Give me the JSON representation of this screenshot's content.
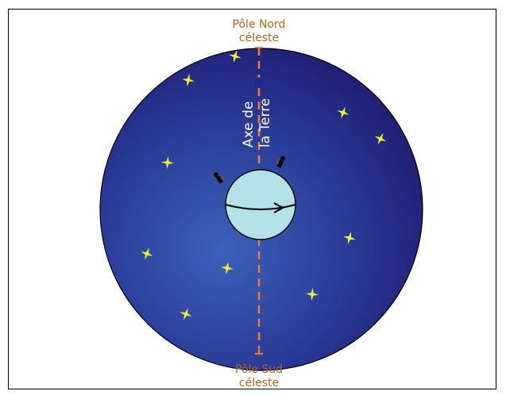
{
  "labels": {
    "north_pole_line1": "Pôle Nord",
    "north_pole_line2": "céleste",
    "south_pole_line1": "Pôle Sud",
    "south_pole_line2": "céleste",
    "axis_line1": "Axe de",
    "axis_line2": "la Terre"
  },
  "colors": {
    "pole_label": "#b5651d",
    "axis": "#f07a3a",
    "sphere_center": "#3a62b8",
    "sphere_edge": "#1e1a6e",
    "earth": "#b2e2e6",
    "star": "#f4ec3c",
    "axis_text": "#ffffff"
  },
  "stars": [
    {
      "name": "star-1"
    },
    {
      "name": "star-2"
    },
    {
      "name": "star-3"
    },
    {
      "name": "star-4"
    },
    {
      "name": "star-5"
    },
    {
      "name": "star-6"
    },
    {
      "name": "star-7"
    },
    {
      "name": "star-8"
    },
    {
      "name": "star-9"
    },
    {
      "name": "star-10"
    },
    {
      "name": "star-11"
    }
  ]
}
